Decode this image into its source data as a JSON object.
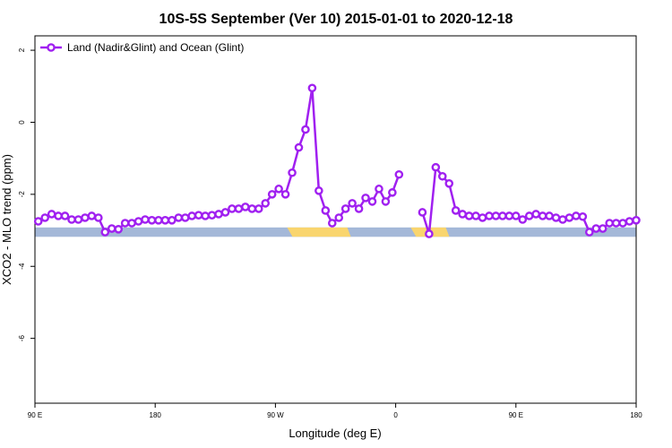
{
  "chart_data": {
    "type": "line",
    "title": "10S-5S September (Ver 10)   2015-01-01 to 2020-12-18",
    "xlabel": "Longitude (deg E)",
    "ylabel": "XCO2 - MLO trend (ppm)",
    "xlim": [
      90,
      450
    ],
    "ylim": [
      -7.8,
      2.4
    ],
    "x_ticks": [
      {
        "value": 90,
        "label": "90 E"
      },
      {
        "value": 162,
        "label": "180"
      },
      {
        "value": 234,
        "label": "90 W"
      },
      {
        "value": 306,
        "label": "0"
      },
      {
        "value": 378,
        "label": "90 E"
      },
      {
        "value": 450,
        "label": "180"
      }
    ],
    "y_ticks": [
      {
        "value": 2,
        "label": "2"
      },
      {
        "value": 0,
        "label": "0"
      },
      {
        "value": -2,
        "label": "-2"
      },
      {
        "value": -4,
        "label": "-4"
      },
      {
        "value": -6,
        "label": "-6"
      }
    ],
    "grid": false,
    "legend_position": "top-left",
    "series": [
      {
        "name": "Land (Nadir&Glint) and Ocean (Glint)",
        "color": "#a020f0",
        "segments": [
          {
            "x": [
              92,
              96,
              100,
              104,
              108,
              112,
              116,
              120,
              124,
              128,
              132,
              136,
              140,
              144,
              148,
              152,
              156,
              160,
              164,
              168,
              172,
              176,
              180,
              184,
              188,
              192,
              196,
              200,
              204,
              208,
              212,
              216,
              220,
              224,
              228,
              232,
              236,
              240,
              244,
              248,
              252,
              256,
              260,
              264,
              268,
              272,
              276,
              280,
              284,
              288,
              292,
              296,
              300,
              304,
              308
            ],
            "y": [
              -2.75,
              -2.65,
              -2.55,
              -2.6,
              -2.6,
              -2.7,
              -2.7,
              -2.65,
              -2.6,
              -2.65,
              -3.05,
              -2.95,
              -2.97,
              -2.8,
              -2.8,
              -2.75,
              -2.7,
              -2.72,
              -2.72,
              -2.72,
              -2.72,
              -2.65,
              -2.65,
              -2.6,
              -2.58,
              -2.6,
              -2.58,
              -2.55,
              -2.5,
              -2.4,
              -2.4,
              -2.35,
              -2.4,
              -2.4,
              -2.25,
              -2.0,
              -1.85,
              -2.0,
              -1.4,
              -0.7,
              -0.2,
              0.95,
              -1.9,
              -2.45,
              -2.8,
              -2.65,
              -2.4,
              -2.25,
              -2.4,
              -2.1,
              -2.2,
              -1.85,
              -2.2,
              -1.95,
              -1.45
            ]
          },
          {
            "x": [
              322,
              326,
              330,
              334,
              338,
              342,
              346,
              350,
              354,
              358,
              362,
              366,
              370,
              374,
              378,
              382,
              386,
              390,
              394,
              398,
              402,
              406,
              410,
              414,
              418,
              422,
              426,
              430,
              434,
              438,
              442,
              446,
              450
            ],
            "y": [
              -2.5,
              -3.1,
              -1.25,
              -1.5,
              -1.7,
              -2.45,
              -2.55,
              -2.6,
              -2.6,
              -2.65,
              -2.6,
              -2.6,
              -2.6,
              -2.6,
              -2.6,
              -2.7,
              -2.6,
              -2.55,
              -2.6,
              -2.6,
              -2.65,
              -2.7,
              -2.65,
              -2.6,
              -2.62,
              -3.05,
              -2.95,
              -2.95,
              -2.8,
              -2.8,
              -2.8,
              -2.75,
              -2.72
            ]
          }
        ]
      }
    ],
    "surface_band": {
      "y_range": [
        -3.18,
        -2.92
      ],
      "ocean_color": "#a4b8d8",
      "land_color": "#f9d56e",
      "land_spans": [
        [
          241,
          277
        ],
        [
          315,
          336
        ]
      ]
    }
  }
}
